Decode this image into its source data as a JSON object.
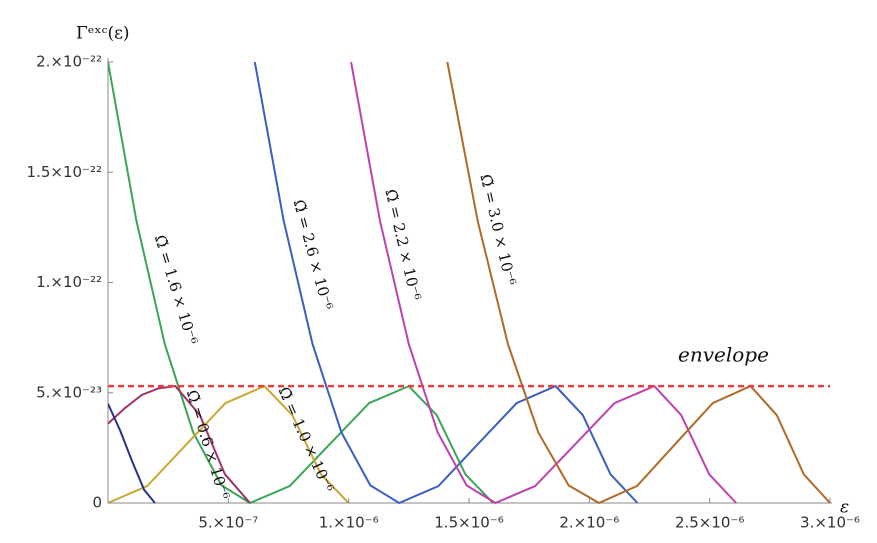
{
  "chart_data": {
    "type": "line",
    "y_label": "Γᵉˣᶜ(ε)",
    "x_label": "ε",
    "xlim": [
      0,
      3e-06
    ],
    "ylim": [
      0,
      2e-22
    ],
    "xticks": [
      {
        "value": 5e-07,
        "label": "5.×10⁻⁷"
      },
      {
        "value": 1e-06,
        "label": "1.×10⁻⁶"
      },
      {
        "value": 1.5e-06,
        "label": "1.5×10⁻⁶"
      },
      {
        "value": 2e-06,
        "label": "2.×10⁻⁶"
      },
      {
        "value": 2.5e-06,
        "label": "2.5×10⁻⁶"
      },
      {
        "value": 3e-06,
        "label": "3.×10⁻⁶"
      }
    ],
    "yticks": [
      0,
      {
        "value": 5e-23,
        "label": "5.×10⁻²³"
      },
      {
        "value": 1e-22,
        "label": "1.×10⁻²²"
      },
      {
        "value": 1.5e-22,
        "label": "1.5×10⁻²²"
      },
      {
        "value": 2e-22,
        "label": "2.×10⁻²²"
      }
    ],
    "envelope": {
      "label": "envelope",
      "value": 5.3e-23,
      "color": "#e8403f"
    },
    "series": [
      {
        "name": "Ω̃ = 1.6 × 10⁻⁶",
        "color": "#3aa655",
        "x": [
          0,
          1.18e-07,
          2.36e-07,
          3.54e-07,
          4.72e-07,
          5.9e-07,
          7.55e-07,
          9.2e-07,
          1.085e-06,
          1.25e-06,
          1.366e-06,
          1.485e-06,
          1.6e-06
        ],
        "values": [
          2e-22,
          1.28e-22,
          7.2e-23,
          3.2e-23,
          8e-24,
          0,
          7.7e-24,
          2.65e-23,
          4.53e-23,
          5.3e-23,
          3.98e-23,
          1.3e-23,
          0
        ]
      },
      {
        "name": "Ω̃ = 0.6 × 10⁻⁶",
        "color": "#a0306a",
        "x": [
          0,
          7e-08,
          1.4e-07,
          2.1e-07,
          2.8e-07,
          3.82e-07,
          4.86e-07,
          5.9e-07
        ],
        "values": [
          3.6e-23,
          4.3e-23,
          4.9e-23,
          5.2e-23,
          5.3e-23,
          3.98e-23,
          1.3e-23,
          0
        ]
      },
      {
        "name": "Ω̃ = 1.0 × 10⁻⁶",
        "color": "#c8a832",
        "x": [
          0,
          1.63e-07,
          3.25e-07,
          4.88e-07,
          6.5e-07,
          7.66e-07,
          8.85e-07,
          1e-06
        ],
        "values": [
          0,
          7.7e-24,
          2.65e-23,
          4.53e-23,
          5.3e-23,
          3.98e-23,
          1.3e-23,
          0
        ]
      },
      {
        "name": "Ω̃ = 2.6 × 10⁻⁶",
        "color": "#3b5fbf",
        "x": [
          6.1e-07,
          7.3e-07,
          8.5e-07,
          9.7e-07,
          1.09e-06,
          1.21e-06,
          1.373e-06,
          1.535e-06,
          1.698e-06,
          1.86e-06,
          1.973e-06,
          2.088e-06,
          2.2e-06
        ],
        "values": [
          2e-22,
          1.28e-22,
          7.2e-23,
          3.2e-23,
          8e-24,
          0,
          7.7e-24,
          2.65e-23,
          4.53e-23,
          5.3e-23,
          3.98e-23,
          1.3e-23,
          0
        ]
      },
      {
        "name": "Ω̃ = 2.2 × 10⁻⁶",
        "color": "#c040b0",
        "x": [
          1.01e-06,
          1.13e-06,
          1.25e-06,
          1.37e-06,
          1.49e-06,
          1.61e-06,
          1.775e-06,
          1.94e-06,
          2.105e-06,
          2.27e-06,
          2.382e-06,
          2.498e-06,
          2.61e-06
        ],
        "values": [
          2e-22,
          1.28e-22,
          7.2e-23,
          3.2e-23,
          8e-24,
          0,
          7.7e-24,
          2.65e-23,
          4.53e-23,
          5.3e-23,
          3.98e-23,
          1.3e-23,
          0
        ]
      },
      {
        "name": "Ω̃ = 3.0 × 10⁻⁶",
        "color": "#b06a28",
        "x": [
          1.41e-06,
          1.536e-06,
          1.662e-06,
          1.788e-06,
          1.914e-06,
          2.04e-06,
          2.198e-06,
          2.355e-06,
          2.513e-06,
          2.67e-06,
          2.779e-06,
          2.891e-06,
          3e-06
        ],
        "values": [
          2e-22,
          1.28e-22,
          7.2e-23,
          3.2e-23,
          8e-24,
          0,
          7.7e-24,
          2.65e-23,
          4.53e-23,
          5.3e-23,
          3.98e-23,
          1.3e-23,
          0
        ]
      },
      {
        "color": "#28308a",
        "x": [
          0,
          5e-08,
          1e-07,
          1.5e-07,
          1.95e-07
        ],
        "values": [
          4.5e-23,
          3.3e-23,
          1.9e-23,
          6e-24,
          0
        ]
      }
    ]
  }
}
